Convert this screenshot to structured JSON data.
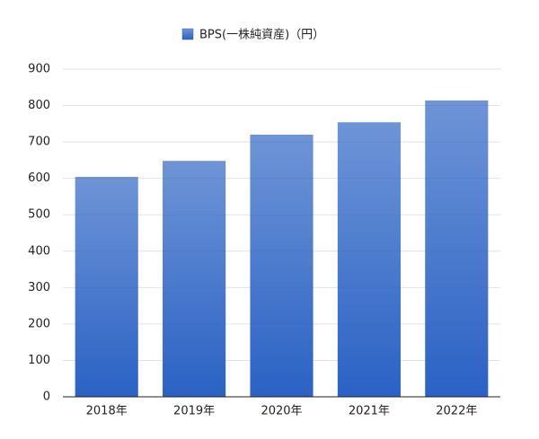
{
  "chart_data": {
    "type": "bar",
    "categories": [
      "2018年",
      "2019年",
      "2020年",
      "2021年",
      "2022年"
    ],
    "series": [
      {
        "name": "BPS(一株純資産)（円）",
        "color": "#2a62c4",
        "values": [
          604,
          648,
          720,
          754,
          814
        ]
      }
    ],
    "ylim": [
      0,
      900
    ],
    "yticks": [
      0,
      100,
      200,
      300,
      400,
      500,
      600,
      700,
      800,
      900
    ],
    "grid": true,
    "legend": "top"
  }
}
